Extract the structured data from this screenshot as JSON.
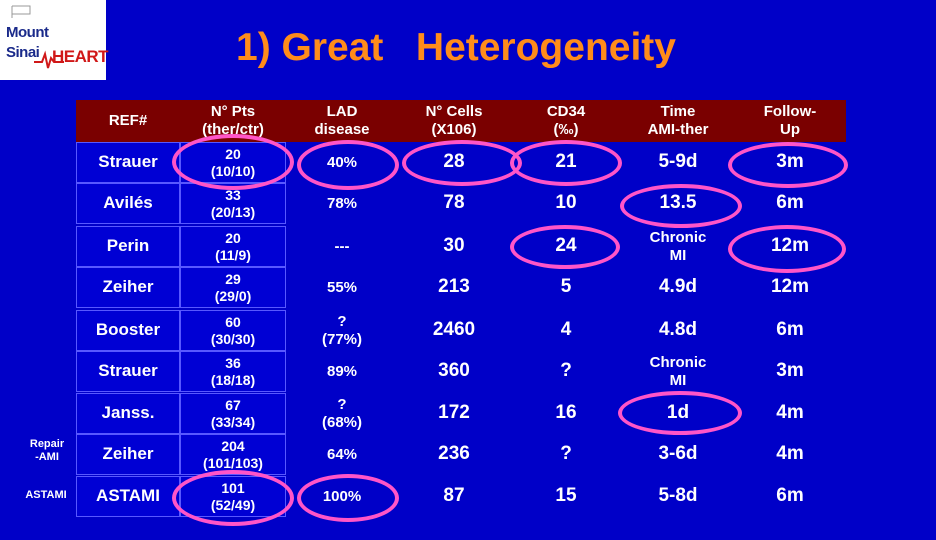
{
  "logo": {
    "line1": "Mount",
    "line2": "Sinai",
    "line3": "HEART"
  },
  "title": "1) Great   Heterogeneity",
  "headers": [
    {
      "label": "REF#"
    },
    {
      "label": "N° Pts\n(ther/ctr)"
    },
    {
      "label": "LAD\ndisease"
    },
    {
      "label": "N° Cells\n(X106)"
    },
    {
      "label": "CD34\n(‰)"
    },
    {
      "label": "Time\nAMI-ther"
    },
    {
      "label": "Follow-\nUp"
    }
  ],
  "rows": [
    {
      "ref": "Strauer",
      "pts": "20\n(10/10)",
      "lad": "40%",
      "cells": "28",
      "cd34": "21",
      "time": "5-9d",
      "follow": "3m"
    },
    {
      "ref": "Avilés",
      "pts": "33\n(20/13)",
      "lad": "78%",
      "cells": "78",
      "cd34": "10",
      "time": "13.5",
      "follow": "6m"
    },
    {
      "ref": "Perin",
      "pts": "20\n(11/9)",
      "lad": "---",
      "cells": "30",
      "cd34": "24",
      "time": "Chronic\nMI",
      "follow": "12m"
    },
    {
      "ref": "Zeiher",
      "pts": "29\n(29/0)",
      "lad": "55%",
      "cells": "213",
      "cd34": "5",
      "time": "4.9d",
      "follow": "12m"
    },
    {
      "ref": "Booster",
      "pts": "60\n(30/30)",
      "lad": "?\n(77%)",
      "cells": "2460",
      "cd34": "4",
      "time": "4.8d",
      "follow": "6m"
    },
    {
      "ref": "Strauer",
      "pts": "36\n(18/18)",
      "lad": "89%",
      "cells": "360",
      "cd34": "?",
      "time": "Chronic\nMI",
      "follow": "3m"
    },
    {
      "ref": "Janss.",
      "pts": "67\n(33/34)",
      "lad": "?\n(68%)",
      "cells": "172",
      "cd34": "16",
      "time": "1d",
      "follow": "4m"
    },
    {
      "ref": "Zeiher",
      "pts": "204\n(101/103)",
      "lad": "64%",
      "cells": "236",
      "cd34": "?",
      "time": "3-6d",
      "follow": "4m"
    },
    {
      "ref": "ASTAMI",
      "pts": "101\n(52/49)",
      "lad": "100%",
      "cells": "87",
      "cd34": "15",
      "time": "5-8d",
      "follow": "6m"
    }
  ],
  "side_labels": {
    "repair": "Repair\n-AMI",
    "astami": "ASTAMI"
  },
  "highlight_color": "#ff55c8"
}
